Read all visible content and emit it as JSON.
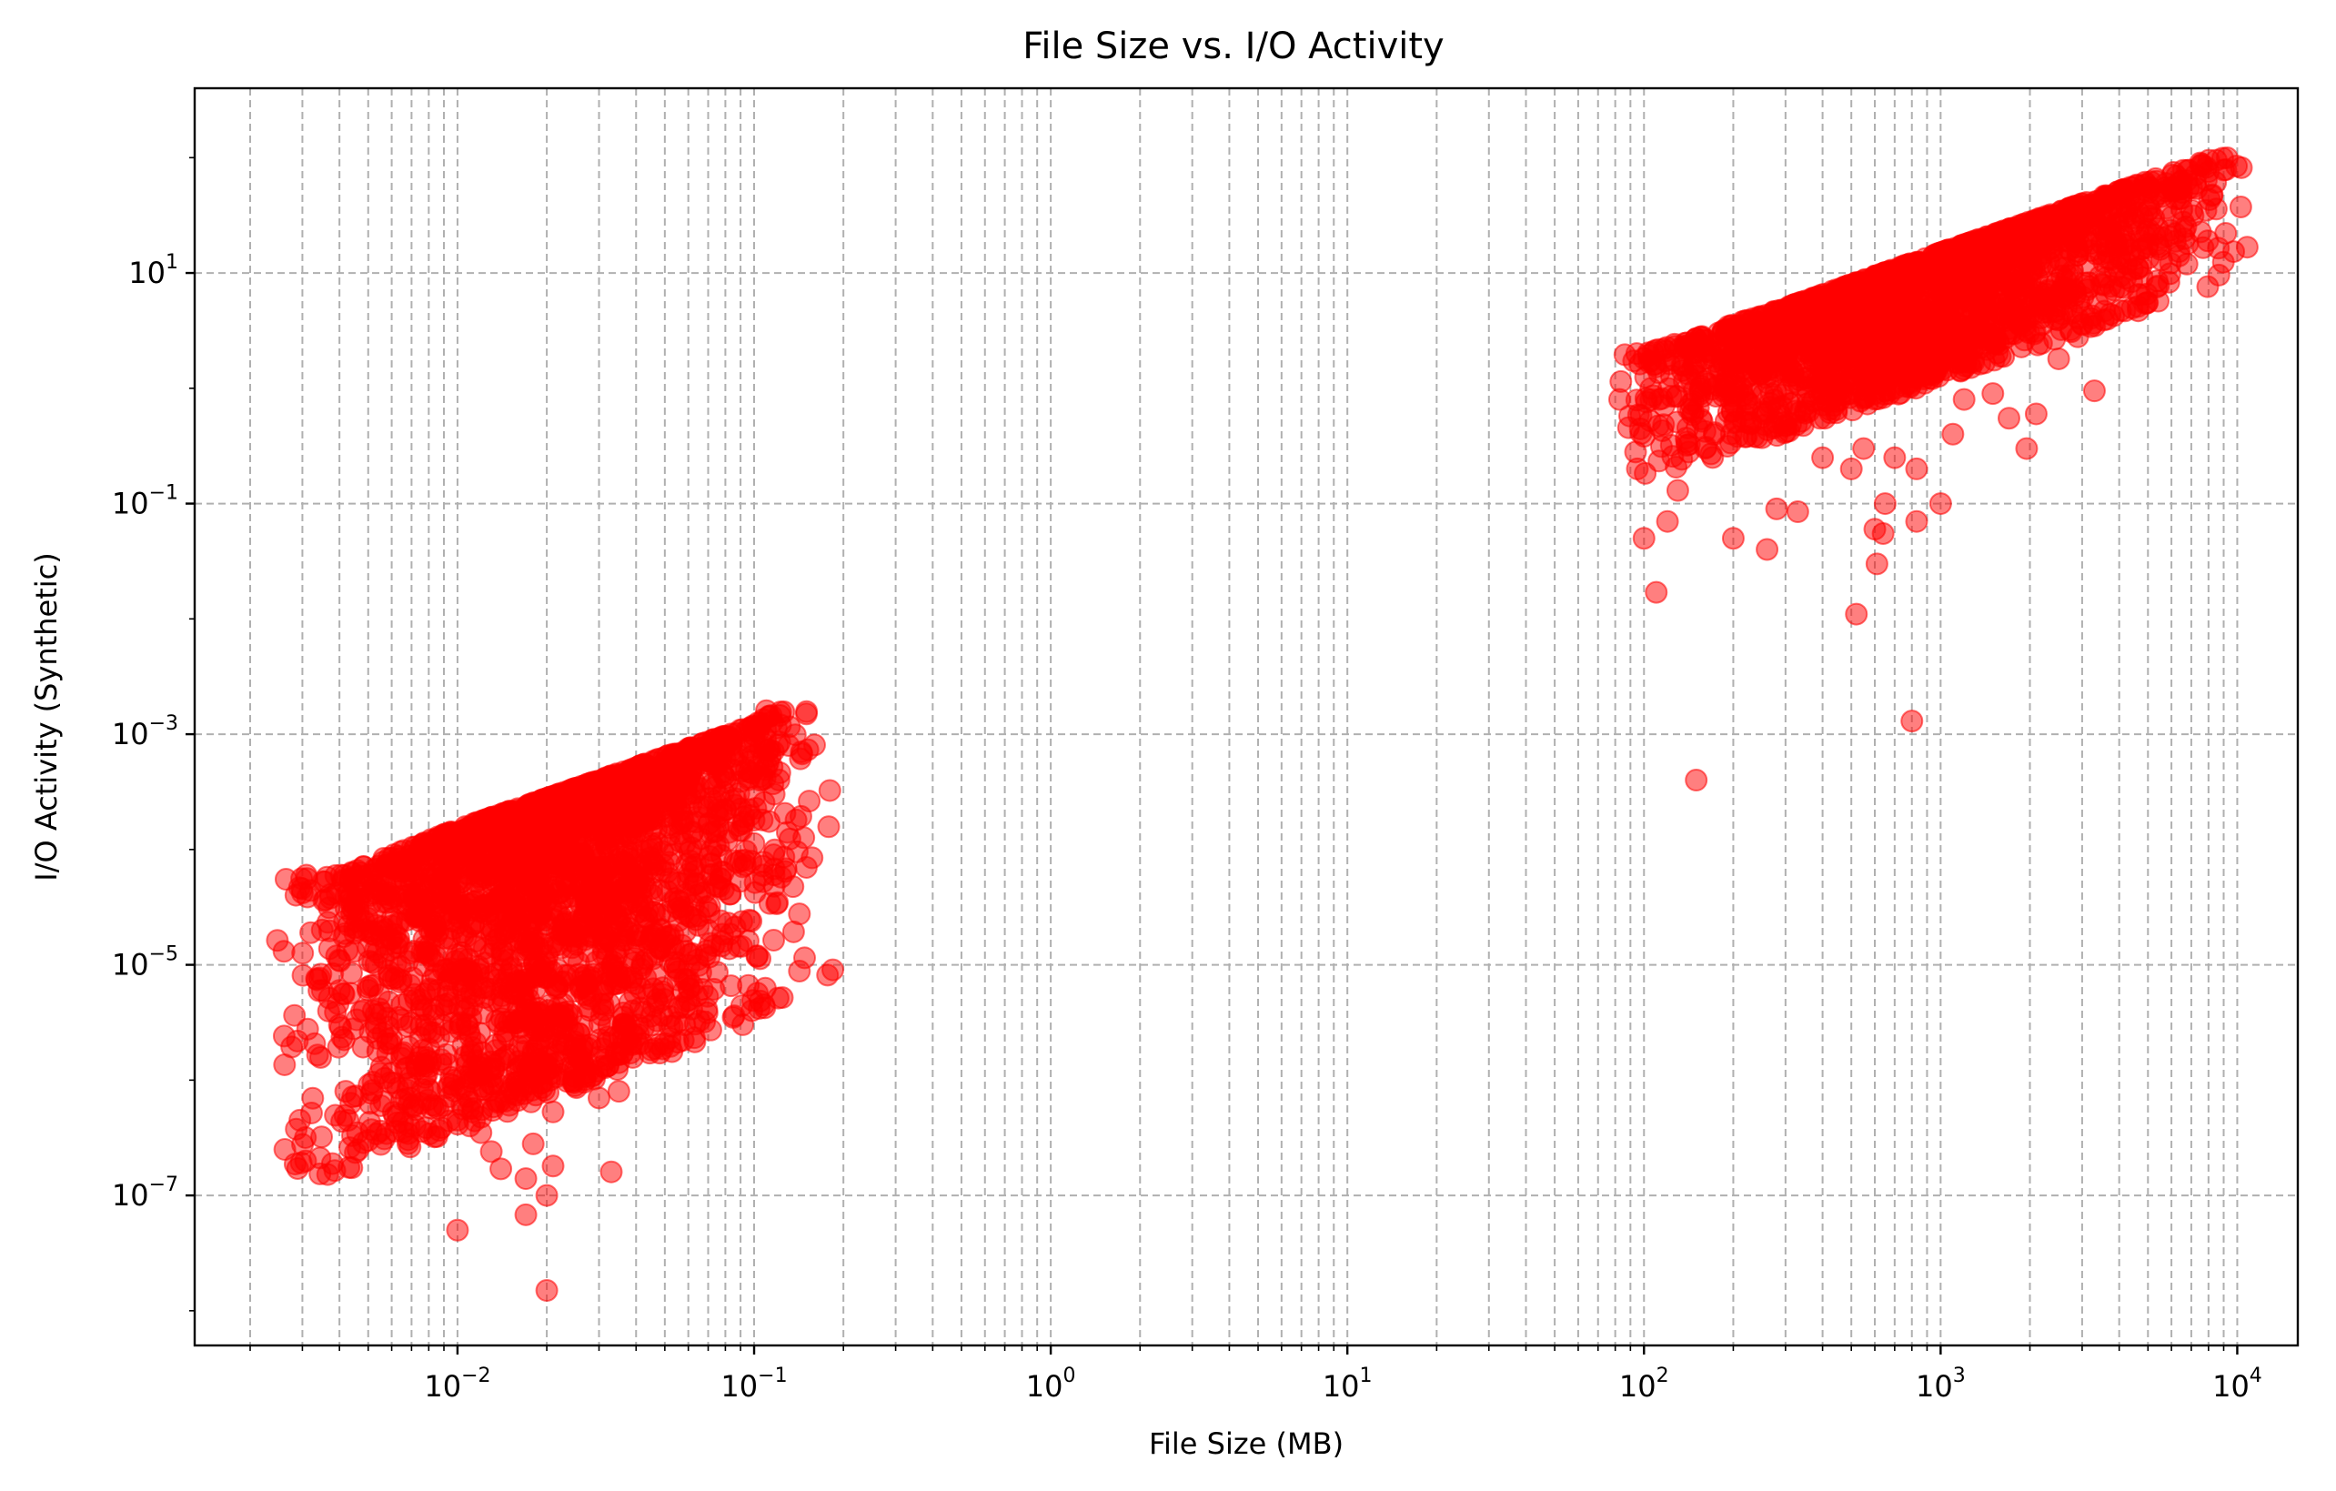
{
  "chart_data": {
    "type": "scatter",
    "title": "File Size vs. I/O Activity",
    "xlabel": "File Size (MB)",
    "ylabel": "I/O Activity (Synthetic)",
    "xscale": "log",
    "yscale": "log",
    "xlim": [
      0.0013,
      16000
    ],
    "ylim": [
      5e-09,
      400
    ],
    "x_ticks": [
      {
        "base": "10",
        "exp": "−2"
      },
      {
        "base": "10",
        "exp": "−1"
      },
      {
        "base": "10",
        "exp": "0"
      },
      {
        "base": "10",
        "exp": "1"
      },
      {
        "base": "10",
        "exp": "2"
      },
      {
        "base": "10",
        "exp": "3"
      },
      {
        "base": "10",
        "exp": "4"
      }
    ],
    "y_ticks": [
      {
        "base": "10",
        "exp": "−7"
      },
      {
        "base": "10",
        "exp": "−5"
      },
      {
        "base": "10",
        "exp": "−3"
      },
      {
        "base": "10",
        "exp": "−1"
      },
      {
        "base": "10",
        "exp": "1"
      }
    ],
    "grid": true,
    "grid_style": "dashed",
    "marker_color": "#ff0000",
    "marker_alpha": 0.5,
    "clusters": [
      {
        "name": "",
        "x_range": [
          0.003,
          0.15
        ],
        "y_range": [
          1.5e-08,
          0.0016
        ],
        "upper_edge": [
          [
            0.004,
            6e-05
          ],
          [
            0.01,
            0.00015
          ],
          [
            0.03,
            0.0004
          ],
          [
            0.1,
            0.0012
          ],
          [
            0.12,
            0.0016
          ]
        ],
        "representative_points": [
          [
            0.003,
            4.2e-05
          ],
          [
            0.0032,
            1.9e-05
          ],
          [
            0.0035,
            2e-05
          ],
          [
            0.0035,
            6e-06
          ],
          [
            0.004,
            6e-06
          ],
          [
            0.004,
            3e-06
          ],
          [
            0.0042,
            8e-07
          ],
          [
            0.0046,
            3.5e-07
          ],
          [
            0.005,
            3e-07
          ],
          [
            0.0052,
            4e-06
          ],
          [
            0.006,
            2.3e-06
          ],
          [
            0.0065,
            4.5e-06
          ],
          [
            0.008,
            1.3e-06
          ],
          [
            0.009,
            6e-07
          ],
          [
            0.01,
            4.5e-07
          ],
          [
            0.011,
            4e-07
          ],
          [
            0.012,
            3.5e-07
          ],
          [
            0.013,
            2.4e-07
          ],
          [
            0.014,
            1.7e-07
          ],
          [
            0.017,
            6.8e-08
          ],
          [
            0.017,
            1.4e-07
          ],
          [
            0.018,
            2.8e-07
          ],
          [
            0.02,
            1e-07
          ],
          [
            0.021,
            1.8e-07
          ],
          [
            0.021,
            5.3e-07
          ],
          [
            0.02,
            1.5e-08
          ],
          [
            0.01,
            5e-08
          ],
          [
            0.033,
            1.6e-07
          ],
          [
            0.03,
            7e-07
          ],
          [
            0.035,
            8e-07
          ],
          [
            0.045,
            3e-06
          ],
          [
            0.07,
            2e-05
          ],
          [
            0.085,
            3.5e-06
          ],
          [
            0.075,
            4.8e-05
          ],
          [
            0.09,
            8e-05
          ],
          [
            0.1,
            0.00018
          ],
          [
            0.12,
            0.0008
          ],
          [
            0.15,
            0.0015
          ],
          [
            0.11,
            0.0016
          ],
          [
            0.15,
            7e-05
          ]
        ]
      },
      {
        "name": "",
        "x_range": [
          95,
          8500
        ],
        "y_range": [
          0.0004,
          100
        ],
        "upper_edge": [
          [
            100,
            2
          ],
          [
            300,
            5
          ],
          [
            1000,
            15
          ],
          [
            3000,
            40
          ],
          [
            8500,
            100
          ]
        ],
        "representative_points": [
          [
            95,
            0.2
          ],
          [
            100,
            0.05
          ],
          [
            110,
            0.017
          ],
          [
            120,
            0.07
          ],
          [
            130,
            0.13
          ],
          [
            150,
            0.0004
          ],
          [
            200,
            0.05
          ],
          [
            230,
            0.5
          ],
          [
            260,
            0.04
          ],
          [
            280,
            0.09
          ],
          [
            330,
            0.085
          ],
          [
            400,
            0.25
          ],
          [
            500,
            0.2
          ],
          [
            520,
            0.011
          ],
          [
            550,
            0.3
          ],
          [
            600,
            0.06
          ],
          [
            610,
            0.03
          ],
          [
            640,
            0.055
          ],
          [
            650,
            0.1
          ],
          [
            700,
            0.25
          ],
          [
            800,
            0.0013
          ],
          [
            830,
            0.07
          ],
          [
            830,
            0.2
          ],
          [
            1000,
            0.1
          ],
          [
            1100,
            0.4
          ],
          [
            1200,
            0.8
          ],
          [
            1500,
            0.9
          ],
          [
            1700,
            0.55
          ],
          [
            1950,
            0.3
          ],
          [
            2100,
            0.6
          ],
          [
            2500,
            1.8
          ],
          [
            2900,
            2.8
          ],
          [
            3300,
            0.95
          ],
          [
            3500,
            18
          ],
          [
            4200,
            9
          ],
          [
            4800,
            30
          ],
          [
            5500,
            16
          ],
          [
            6000,
            55
          ],
          [
            6500,
            50
          ],
          [
            7500,
            90
          ],
          [
            8500,
            95
          ]
        ]
      }
    ]
  }
}
